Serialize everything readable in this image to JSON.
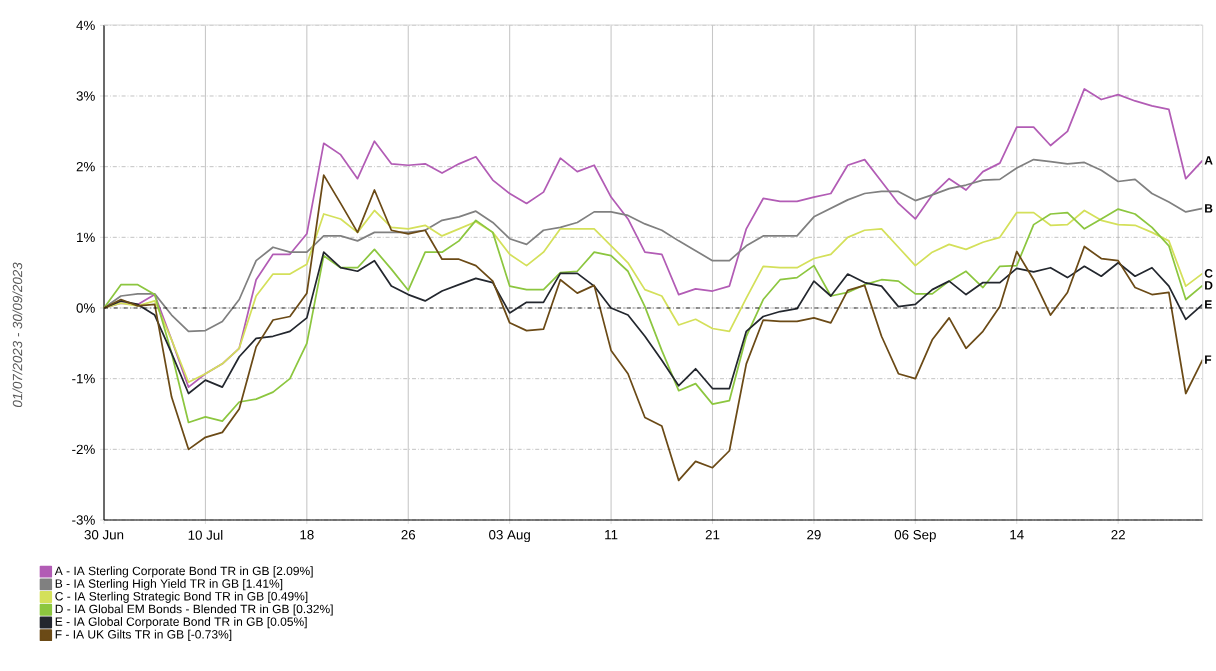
{
  "chart_data": {
    "type": "line",
    "categories": [
      "30 Jun",
      null,
      null,
      null,
      null,
      null,
      "10 Jul",
      null,
      null,
      null,
      null,
      null,
      "18",
      null,
      null,
      null,
      null,
      null,
      "26",
      null,
      null,
      null,
      null,
      null,
      "03 Aug",
      null,
      null,
      null,
      null,
      null,
      "11",
      null,
      null,
      null,
      null,
      null,
      "21",
      null,
      null,
      null,
      null,
      null,
      "29",
      null,
      null,
      null,
      null,
      null,
      "06 Sep",
      null,
      null,
      null,
      null,
      null,
      "14",
      null,
      null,
      null,
      null,
      null,
      "22",
      null,
      null,
      null,
      null,
      null
    ],
    "series": [
      {
        "name": "A - IA Sterling Corporate Bond TR in GB [2.09%]",
        "color": "#b25cb5",
        "values": [
          0,
          0.07,
          0.05,
          0.19,
          -0.45,
          -1.12,
          -0.93,
          -0.79,
          -0.57,
          0.4,
          0.76,
          0.76,
          1.05,
          2.33,
          2.17,
          1.83,
          2.36,
          2.04,
          2.02,
          2.04,
          1.91,
          2.04,
          2.14,
          1.81,
          1.62,
          1.48,
          1.64,
          2.12,
          1.93,
          2.02,
          1.57,
          1.26,
          0.79,
          0.76,
          0.19,
          0.27,
          0.24,
          0.31,
          1.12,
          1.55,
          1.51,
          1.51,
          1.57,
          1.62,
          2.02,
          2.1,
          1.79,
          1.48,
          1.26,
          1.6,
          1.83,
          1.67,
          1.93,
          2.05,
          2.56,
          2.56,
          2.3,
          2.5,
          3.1,
          2.95,
          3.02,
          2.93,
          2.86,
          2.81,
          1.83,
          2.09
        ]
      },
      {
        "name": "B - IA Sterling High Yield TR in GB [1.41%]",
        "color": "#808080",
        "values": [
          0,
          0.17,
          0.2,
          0.2,
          -0.1,
          -0.33,
          -0.32,
          -0.19,
          0.12,
          0.67,
          0.86,
          0.79,
          0.79,
          1.02,
          1.02,
          0.95,
          1.07,
          1.07,
          1.07,
          1.1,
          1.24,
          1.29,
          1.37,
          1.21,
          0.98,
          0.9,
          1.1,
          1.14,
          1.21,
          1.36,
          1.36,
          1.31,
          1.19,
          1.1,
          0.95,
          0.81,
          0.67,
          0.67,
          0.88,
          1.02,
          1.02,
          1.02,
          1.29,
          1.41,
          1.53,
          1.62,
          1.65,
          1.65,
          1.52,
          1.6,
          1.69,
          1.74,
          1.81,
          1.82,
          1.98,
          2.1,
          2.07,
          2.04,
          2.06,
          1.95,
          1.79,
          1.82,
          1.62,
          1.5,
          1.36,
          1.41
        ]
      },
      {
        "name": "C - IA Sterling Strategic Bond TR in GB [0.49%]",
        "color": "#d4e05a",
        "values": [
          0,
          0.07,
          0.03,
          0.1,
          -0.45,
          -1.05,
          -0.93,
          -0.79,
          -0.57,
          0.17,
          0.48,
          0.48,
          0.62,
          1.33,
          1.26,
          1.07,
          1.38,
          1.14,
          1.12,
          1.17,
          1.02,
          1.12,
          1.22,
          1.07,
          0.76,
          0.6,
          0.79,
          1.12,
          1.12,
          1.12,
          0.88,
          0.64,
          0.26,
          0.17,
          -0.24,
          -0.16,
          -0.29,
          -0.33,
          0.14,
          0.59,
          0.57,
          0.57,
          0.7,
          0.76,
          1.0,
          1.1,
          1.12,
          0.86,
          0.6,
          0.79,
          0.9,
          0.83,
          0.93,
          1.0,
          1.35,
          1.35,
          1.17,
          1.18,
          1.38,
          1.24,
          1.18,
          1.17,
          1.07,
          0.95,
          0.31,
          0.49
        ]
      },
      {
        "name": "D - IA Global EM Bonds - Blended TR in GB [0.32%]",
        "color": "#8cc63f",
        "values": [
          0,
          0.33,
          0.33,
          0.19,
          -0.64,
          -1.62,
          -1.54,
          -1.6,
          -1.33,
          -1.29,
          -1.19,
          -1.0,
          -0.5,
          0.74,
          0.57,
          0.57,
          0.83,
          0.55,
          0.25,
          0.79,
          0.79,
          0.95,
          1.24,
          1.07,
          0.31,
          0.26,
          0.26,
          0.5,
          0.52,
          0.79,
          0.74,
          0.52,
          0.02,
          -0.6,
          -1.17,
          -1.07,
          -1.36,
          -1.31,
          -0.4,
          0.12,
          0.4,
          0.43,
          0.6,
          0.17,
          0.22,
          0.33,
          0.4,
          0.38,
          0.2,
          0.2,
          0.38,
          0.52,
          0.29,
          0.59,
          0.6,
          1.18,
          1.33,
          1.35,
          1.12,
          1.26,
          1.4,
          1.33,
          1.14,
          0.88,
          0.12,
          0.32
        ]
      },
      {
        "name": "E - IA Global Corporate Bond TR in GB [0.05%]",
        "color": "#23272e",
        "values": [
          0,
          0.1,
          0.05,
          -0.1,
          -0.64,
          -1.21,
          -1.02,
          -1.12,
          -0.69,
          -0.43,
          -0.4,
          -0.33,
          -0.14,
          0.79,
          0.57,
          0.52,
          0.67,
          0.31,
          0.19,
          0.1,
          0.24,
          0.33,
          0.42,
          0.36,
          -0.07,
          0.08,
          0.08,
          0.49,
          0.49,
          0.31,
          0,
          -0.1,
          -0.4,
          -0.74,
          -1.1,
          -0.86,
          -1.14,
          -1.14,
          -0.33,
          -0.12,
          -0.05,
          -0.01,
          0.38,
          0.17,
          0.48,
          0.36,
          0.31,
          0.02,
          0.05,
          0.26,
          0.38,
          0.19,
          0.36,
          0.36,
          0.56,
          0.51,
          0.57,
          0.43,
          0.59,
          0.45,
          0.64,
          0.45,
          0.57,
          0.31,
          -0.16,
          0.05
        ]
      },
      {
        "name": "F - IA UK Gilts TR in GB [-0.73%]",
        "color": "#6b4a16",
        "values": [
          0,
          0.12,
          0.03,
          0.05,
          -1.26,
          -2.0,
          -1.83,
          -1.76,
          -1.43,
          -0.55,
          -0.17,
          -0.12,
          0.21,
          1.88,
          1.48,
          1.07,
          1.67,
          1.1,
          1.05,
          1.1,
          0.69,
          0.69,
          0.6,
          0.38,
          -0.21,
          -0.32,
          -0.3,
          0.4,
          0.21,
          0.32,
          -0.6,
          -0.93,
          -1.55,
          -1.67,
          -2.44,
          -2.17,
          -2.26,
          -2.02,
          -0.79,
          -0.17,
          -0.19,
          -0.19,
          -0.14,
          -0.21,
          0.25,
          0.32,
          -0.4,
          -0.93,
          -1.0,
          -0.45,
          -0.14,
          -0.57,
          -0.33,
          0.02,
          0.8,
          0.4,
          -0.1,
          0.22,
          0.87,
          0.7,
          0.67,
          0.29,
          0.19,
          0.22,
          -1.21,
          -0.73
        ]
      }
    ],
    "ylim": [
      -3,
      4
    ],
    "yticks": [
      {
        "value": -3,
        "label": "-3%"
      },
      {
        "value": -2,
        "label": "-2%"
      },
      {
        "value": -1,
        "label": "-1%"
      },
      {
        "value": 0,
        "label": "0%"
      },
      {
        "value": 1,
        "label": "1%"
      },
      {
        "value": 2,
        "label": "2%"
      },
      {
        "value": 3,
        "label": "3%"
      },
      {
        "value": 4,
        "label": "4%"
      }
    ],
    "grid": true,
    "legend": "bottom left",
    "ref_lines": [
      {
        "axis": "y",
        "value": 0,
        "color": "#000000",
        "line_style": "dashdot"
      }
    ],
    "annotations": [
      "01/07/2023 - 30/09/2023",
      "A",
      "B",
      "C",
      "D",
      "E",
      "F"
    ]
  }
}
